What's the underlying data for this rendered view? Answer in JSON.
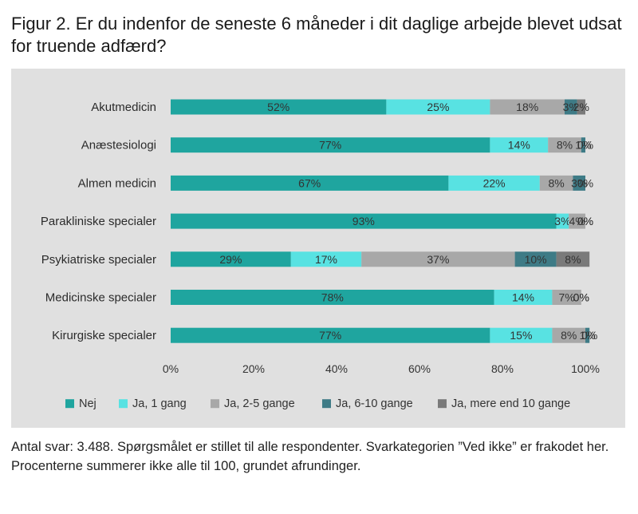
{
  "title": "Figur 2. Er du indenfor de seneste 6 måneder i dit daglige arbejde blevet udsat for truende adfærd?",
  "note": "Antal svar: 3.488. Spørgsmålet er stillet til alle respondenter. Svarkategorien ”Ved ikke” er frakodet her. Procenterne summerer ikke alle til 100, grundet afrundinger.",
  "colors": {
    "background": "#e0e0e0",
    "series": [
      "#1fa59f",
      "#58e2e2",
      "#a8a8a8",
      "#3e7b86",
      "#7a7a7a"
    ]
  },
  "chart_data": {
    "type": "bar",
    "orientation": "horizontal",
    "stacked": true,
    "categories": [
      "Akutmedicin",
      "Anæstesiologi",
      "Almen medicin",
      "Parakliniske specialer",
      "Psykiatriske specialer",
      "Medicinske specialer",
      "Kirurgiske specialer"
    ],
    "series": [
      {
        "name": "Nej",
        "values": [
          52,
          77,
          67,
          93,
          29,
          78,
          77
        ]
      },
      {
        "name": "Ja, 1 gang",
        "values": [
          25,
          14,
          22,
          3,
          17,
          14,
          15
        ]
      },
      {
        "name": "Ja, 2-5 gange",
        "values": [
          18,
          8,
          8,
          4,
          37,
          7,
          8
        ]
      },
      {
        "name": "Ja, 6-10 gange",
        "values": [
          3,
          1,
          3,
          0,
          10,
          0,
          1
        ]
      },
      {
        "name": "Ja, mere end 10 gange",
        "values": [
          2,
          0,
          0,
          0,
          8,
          0,
          0
        ]
      }
    ],
    "data_labels": [
      [
        "52%",
        "25%",
        "18%",
        "3%",
        "2%"
      ],
      [
        "77%",
        "14%",
        "8%",
        "1%",
        "0%"
      ],
      [
        "67%",
        "22%",
        "8%",
        "3%",
        "0%"
      ],
      [
        "93%",
        "3%",
        "4%",
        "0%",
        "0%"
      ],
      [
        "29%",
        "17%",
        "37%",
        "10%",
        "8%"
      ],
      [
        "78%",
        "14%",
        "7%",
        "0%",
        "0%"
      ],
      [
        "77%",
        "15%",
        "8%",
        "1%",
        "0%"
      ]
    ],
    "xlim": [
      0,
      100
    ],
    "x_ticks": [
      "0%",
      "20%",
      "40%",
      "60%",
      "80%",
      "100%"
    ],
    "xlabel": "",
    "ylabel": "",
    "grid": false,
    "legend_position": "bottom"
  }
}
